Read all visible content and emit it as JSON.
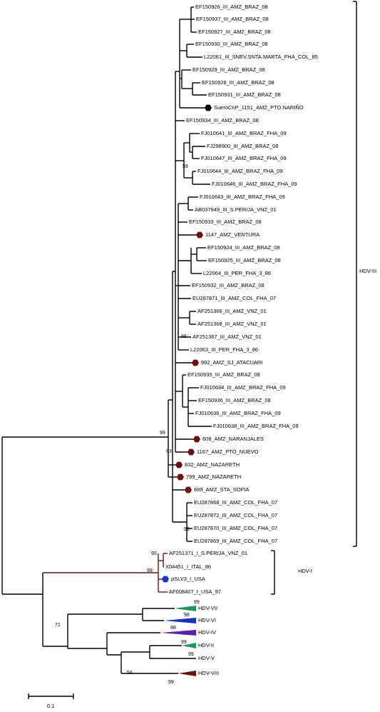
{
  "leaves": [
    "EF150926_III_AMZ_BRAZ_08",
    "EF150937_III_AMZ_BRAZ_08",
    "EF150927_III_AMZ_BRAZ_08",
    "EF150930_III_AMZ_BRAZ_08",
    "L22061_III_SNEV.SNTA.MARTA_FHA_COL_85",
    "EF150929_III_AMZ_BRAZ_08",
    "EF150928_III_AMZ_BRAZ_08",
    "EF150931_III_AMZ_BRAZ_08",
    "SueroCnP_1151_AMZ_PTO.NARIÑO",
    "EF150934_III_AMZ_BRAZ_08",
    "FJ010641_III_AMZ_BRAZ_FHA_09",
    "FJ298900_III_AMZ_BRAZ_08",
    "FJ010647_III_AMZ_BRAZ_FHA_09",
    "FJ010644_III_AMZ_BRAZ_FHA_09",
    "FJ010646_III_AMZ_BRAZ_FHA_09",
    "FJ010643_III_AMZ_BRAZ_FHA_09",
    "AB037949_III_S.PERIJA_VNZ_01",
    "EF150933_III_AMZ_BRAZ_08",
    "1147_AMZ_VENTURA",
    "EF150924_III_AMZ_BRAZ_08",
    "EF150925_III_AMZ_BRAZ_08",
    "L22064_III_PER_FHA_3_86",
    "EF150932_III_AMZ_BRAZ_08",
    "EU287871_III_AMZ_COL_FHA_07",
    "AF251366_III_AMZ_VNZ_01",
    "AF251368_III_AMZ_VNZ_01",
    "AF251367_III_AMZ_VNZ_01",
    "L22063_III_PER_FHA_3_86",
    "992_AMZ_SJ_ATACUARI",
    "EF150935_III_AMZ_BRAZ_08",
    "FJ010634_III_AMZ_BRAZ_FHA_09",
    "EF150936_III_AMZ_BRAZ_08",
    "FJ010636_III_AMZ_BRAZ_FHA_09",
    "FJ010638_III_AMZ_BRAZ_FHA_09",
    "608_AMZ_NARANJALES",
    "1167_AMZ_PTO_NUEVO",
    "832_AMZ_NAZARETH",
    "799_AMZ_NAZARETH",
    "689_AMZ_STA_SOFIA",
    "EU287868_III_AMZ_COL_FHA_07",
    "EU287872_III_AMZ_COL_FHA_07",
    "EU287870_III_AMZ_COL_FHA_07",
    "EU287869_III_AMZ_COL_FHA_07",
    "AF251371_I_S.PERIJA_VNZ_01",
    "X04451_I_ITAL_86",
    "pSLV3_I_USA",
    "AF008407_I_USA_97"
  ],
  "collapsed_clades": [
    "HDV-VII",
    "HDV-VI",
    "HDV-IV",
    "HDV-II",
    "HDV-V",
    "HDV-VIII"
  ],
  "bootstrap": [
    99,
    59,
    88,
    63,
    99,
    95,
    99,
    71,
    99,
    98,
    88,
    99,
    99,
    56,
    99
  ],
  "clade_labels": [
    "HDV-III",
    "HDV-I"
  ],
  "scale_bar": "0.1"
}
